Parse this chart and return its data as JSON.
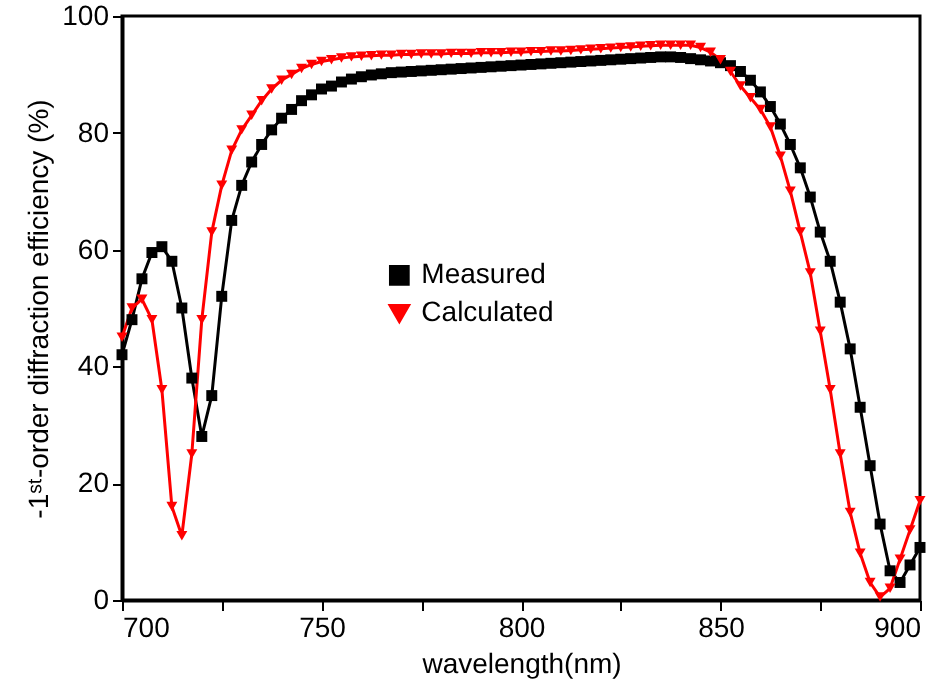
{
  "chart_data": {
    "type": "line",
    "xlabel": "wavelength(nm)",
    "ylabel": "-1ˢᵗ-order diffraction efficiency (%)",
    "x": [
      700,
      702.5,
      705,
      707.5,
      710,
      712.5,
      715,
      717.5,
      720,
      722.5,
      725,
      727.5,
      730,
      732.5,
      735,
      737.5,
      740,
      742.5,
      745,
      747.5,
      750,
      752.5,
      755,
      757.5,
      760,
      762.5,
      765,
      767.5,
      770,
      772.5,
      775,
      777.5,
      780,
      782.5,
      785,
      787.5,
      790,
      792.5,
      795,
      797.5,
      800,
      802.5,
      805,
      807.5,
      810,
      812.5,
      815,
      817.5,
      820,
      822.5,
      825,
      827.5,
      830,
      832.5,
      835,
      837.5,
      840,
      842.5,
      845,
      847.5,
      850,
      852.5,
      855,
      857.5,
      860,
      862.5,
      865,
      867.5,
      870,
      872.5,
      875,
      877.5,
      880,
      882.5,
      885,
      887.5,
      890,
      892.5,
      895,
      897.5,
      900
    ],
    "series": [
      {
        "name": "Measured",
        "color": "#000000",
        "marker": "square",
        "values": [
          42,
          48,
          55,
          59.5,
          60.5,
          58,
          50,
          38,
          28,
          35,
          52,
          65,
          71,
          75,
          78,
          80.5,
          82.5,
          84,
          85.5,
          86.5,
          87.5,
          88,
          88.7,
          89.2,
          89.6,
          89.9,
          90.1,
          90.3,
          90.4,
          90.5,
          90.6,
          90.7,
          90.8,
          90.9,
          91,
          91.1,
          91.2,
          91.3,
          91.4,
          91.5,
          91.6,
          91.7,
          91.8,
          91.9,
          92,
          92.1,
          92.2,
          92.3,
          92.4,
          92.5,
          92.6,
          92.7,
          92.8,
          92.9,
          93,
          93,
          92.9,
          92.7,
          92.5,
          92.3,
          92,
          91.5,
          90.5,
          89,
          87,
          84.5,
          81.5,
          78,
          74,
          69,
          63,
          58,
          51,
          43,
          33,
          23,
          13,
          5,
          3,
          6,
          9
        ]
      },
      {
        "name": "Calculated",
        "color": "#ff0000",
        "marker": "triangle",
        "values": [
          45,
          50,
          51.5,
          48,
          36,
          16,
          11,
          25,
          48,
          63,
          71,
          77,
          80.5,
          83,
          85.5,
          87.5,
          89,
          90,
          91,
          91.7,
          92.2,
          92.5,
          92.8,
          93,
          93.1,
          93.2,
          93.3,
          93.3,
          93.4,
          93.4,
          93.5,
          93.5,
          93.5,
          93.6,
          93.6,
          93.6,
          93.7,
          93.7,
          93.7,
          93.8,
          93.8,
          93.9,
          93.9,
          94,
          94,
          94.1,
          94.2,
          94.3,
          94.4,
          94.5,
          94.6,
          94.7,
          94.8,
          94.9,
          95,
          95,
          95,
          95,
          94.6,
          93.8,
          92.5,
          90.5,
          88,
          86,
          84,
          81,
          76,
          70,
          63,
          56,
          46,
          36,
          25,
          15,
          8,
          3,
          0.5,
          2,
          7,
          12,
          17
        ]
      }
    ],
    "xlim": [
      700,
      900
    ],
    "xticks": [
      700,
      {
        "value": 725,
        "label": null
      },
      750,
      {
        "value": 775,
        "label": null
      },
      800,
      {
        "value": 825,
        "label": null
      },
      850,
      {
        "value": 875,
        "label": null
      },
      900
    ],
    "ylim": [
      0,
      100
    ],
    "yticks": [
      0,
      20,
      40,
      60,
      80,
      100
    ],
    "legend": "left",
    "line_style": "solid",
    "grid": false
  }
}
